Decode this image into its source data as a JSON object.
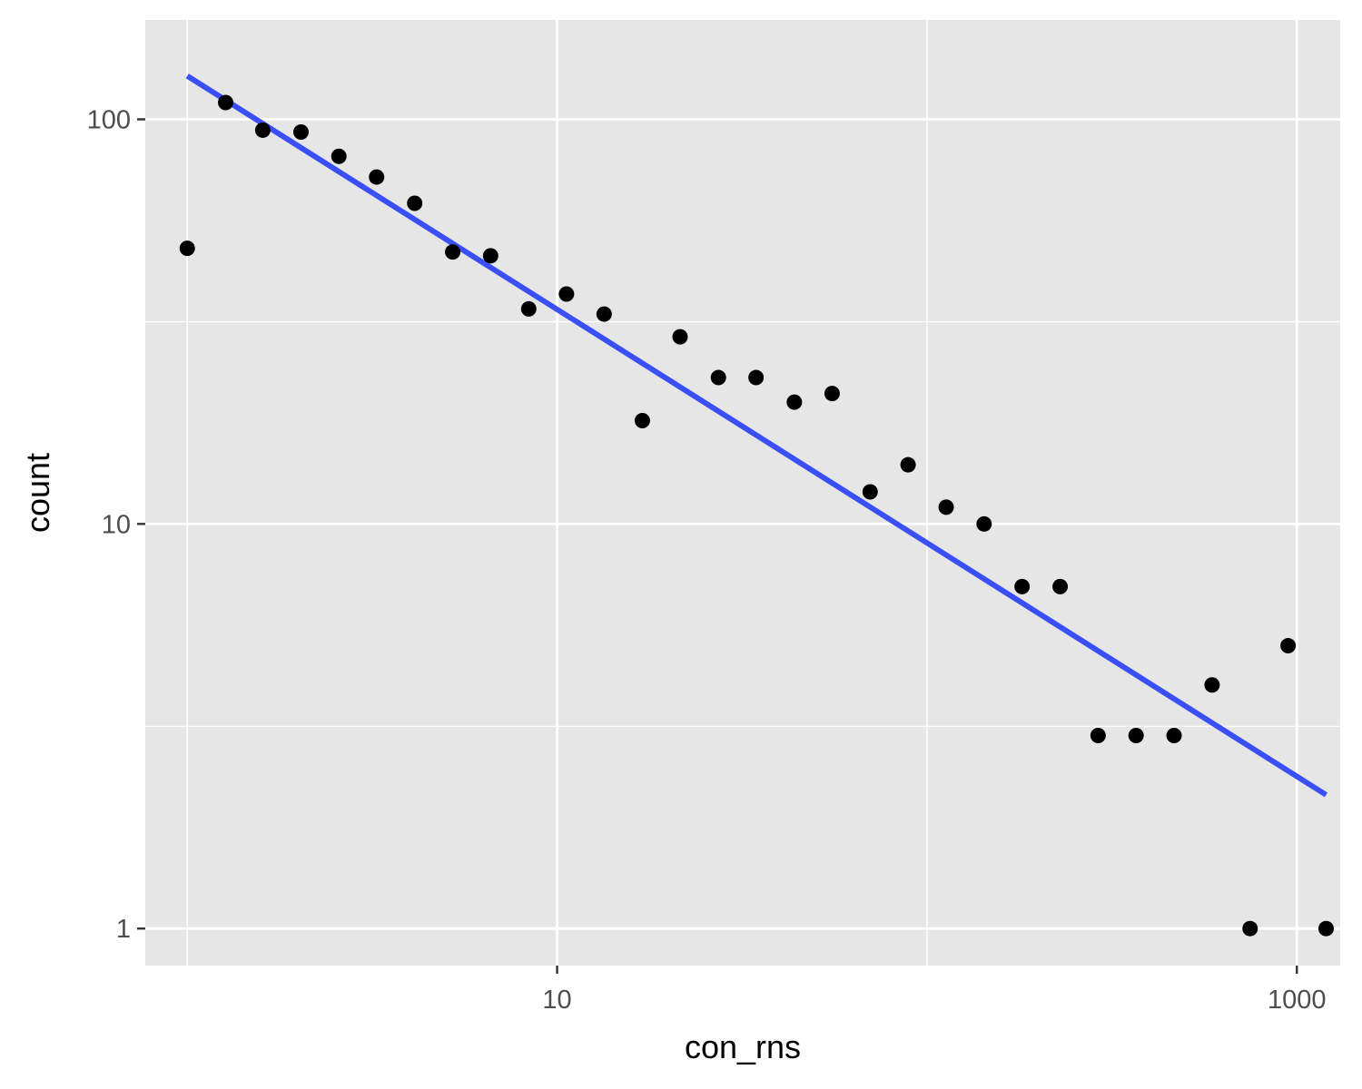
{
  "chart_data": {
    "type": "scatter",
    "xlabel": "con_rns",
    "ylabel": "count",
    "x_scale": "log10",
    "y_scale": "log10",
    "xlim": [
      0.77,
      1310
    ],
    "ylim": [
      0.81,
      176
    ],
    "x_ticks": [
      {
        "value": 10,
        "label": "10"
      },
      {
        "value": 1000,
        "label": "1000"
      }
    ],
    "y_ticks": [
      {
        "value": 1,
        "label": "1"
      },
      {
        "value": 10,
        "label": "10"
      },
      {
        "value": 100,
        "label": "100"
      }
    ],
    "x_major_grid": [
      10,
      1000
    ],
    "x_minor_grid": [
      1,
      100
    ],
    "y_major_grid": [
      1,
      10,
      100
    ],
    "y_minor_grid": [
      3.16,
      31.6
    ],
    "points": [
      {
        "x": 1.0,
        "y": 48
      },
      {
        "x": 1.27,
        "y": 110
      },
      {
        "x": 1.6,
        "y": 94
      },
      {
        "x": 2.03,
        "y": 93
      },
      {
        "x": 2.57,
        "y": 81
      },
      {
        "x": 3.25,
        "y": 72
      },
      {
        "x": 4.12,
        "y": 62
      },
      {
        "x": 5.22,
        "y": 47
      },
      {
        "x": 6.61,
        "y": 46
      },
      {
        "x": 8.38,
        "y": 34
      },
      {
        "x": 10.6,
        "y": 37
      },
      {
        "x": 13.4,
        "y": 33
      },
      {
        "x": 17.0,
        "y": 18
      },
      {
        "x": 21.5,
        "y": 29
      },
      {
        "x": 27.3,
        "y": 23
      },
      {
        "x": 34.5,
        "y": 23
      },
      {
        "x": 43.8,
        "y": 20
      },
      {
        "x": 55.4,
        "y": 21
      },
      {
        "x": 70.2,
        "y": 12
      },
      {
        "x": 88.9,
        "y": 14
      },
      {
        "x": 112.7,
        "y": 11
      },
      {
        "x": 142.7,
        "y": 10
      },
      {
        "x": 180.8,
        "y": 7
      },
      {
        "x": 229.1,
        "y": 7
      },
      {
        "x": 290.2,
        "y": 3
      },
      {
        "x": 367.6,
        "y": 3
      },
      {
        "x": 465.7,
        "y": 3
      },
      {
        "x": 590,
        "y": 4
      },
      {
        "x": 747.5,
        "y": 1
      },
      {
        "x": 947,
        "y": 5
      },
      {
        "x": 1200,
        "y": 1
      }
    ],
    "fit_line": {
      "x": [
        1.0,
        1200
      ],
      "y": [
        128,
        2.14
      ],
      "color": "#3a4ff5"
    },
    "point_color": "#000000",
    "panel_background": "#e6e6e6",
    "grid_color": "#ffffff",
    "grid": true,
    "legend": "none"
  }
}
